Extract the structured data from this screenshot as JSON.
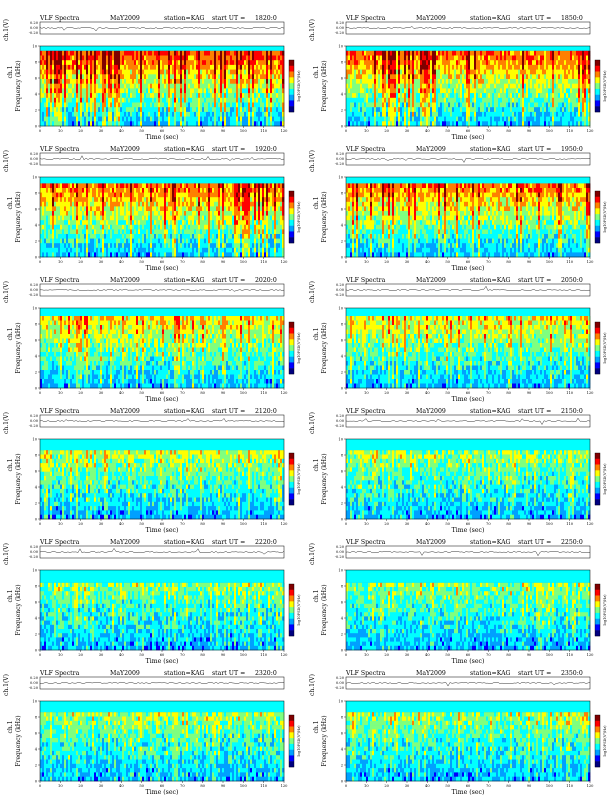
{
  "chart_data": {
    "type": "heatmap",
    "shared": {
      "panel_title": "VLF Spectra",
      "date": "MaY2009",
      "station": "station=KAG",
      "start_label": "start  UT =",
      "xlabel": "Time  (sec)",
      "top_ylabel": "ch.1(V)",
      "spec_ylabel": "Frequency  (kHz)",
      "ch_label": "ch.1",
      "colorbar_label": "log10PSD(V²/Hz)",
      "x_ticks": [
        "0",
        "10",
        "20",
        "30",
        "40",
        "50",
        "60",
        "70",
        "80",
        "90",
        "100",
        "110",
        "120"
      ],
      "y_ticks": [
        "0",
        "2",
        "4",
        "6",
        "8",
        "10"
      ],
      "top_y_ticks": [
        "0.20",
        "0.00",
        "-0.20"
      ],
      "xlim": [
        0,
        120
      ],
      "ylim_khz": [
        0,
        10
      ],
      "colormap": [
        "#00007f",
        "#0000ff",
        "#00a0ff",
        "#00ffff",
        "#7fff7f",
        "#ffff00",
        "#ff8000",
        "#ff0000",
        "#7f0000"
      ]
    },
    "panels": [
      {
        "start_ut": "1820:0",
        "intensity": 0.9,
        "band_top_khz": 9.4
      },
      {
        "start_ut": "1850:0",
        "intensity": 0.85,
        "band_top_khz": 9.4
      },
      {
        "start_ut": "1920:0",
        "intensity": 0.82,
        "band_top_khz": 9.2
      },
      {
        "start_ut": "1950:0",
        "intensity": 0.8,
        "band_top_khz": 9.2
      },
      {
        "start_ut": "2020:0",
        "intensity": 0.62,
        "band_top_khz": 9.0
      },
      {
        "start_ut": "2050:0",
        "intensity": 0.6,
        "band_top_khz": 9.0
      },
      {
        "start_ut": "2120:0",
        "intensity": 0.48,
        "band_top_khz": 8.6
      },
      {
        "start_ut": "2150:0",
        "intensity": 0.42,
        "band_top_khz": 8.6
      },
      {
        "start_ut": "2220:0",
        "intensity": 0.38,
        "band_top_khz": 8.4
      },
      {
        "start_ut": "2250:0",
        "intensity": 0.4,
        "band_top_khz": 8.4
      },
      {
        "start_ut": "2320:0",
        "intensity": 0.4,
        "band_top_khz": 8.6
      },
      {
        "start_ut": "2350:0",
        "intensity": 0.42,
        "band_top_khz": 8.6
      }
    ]
  }
}
